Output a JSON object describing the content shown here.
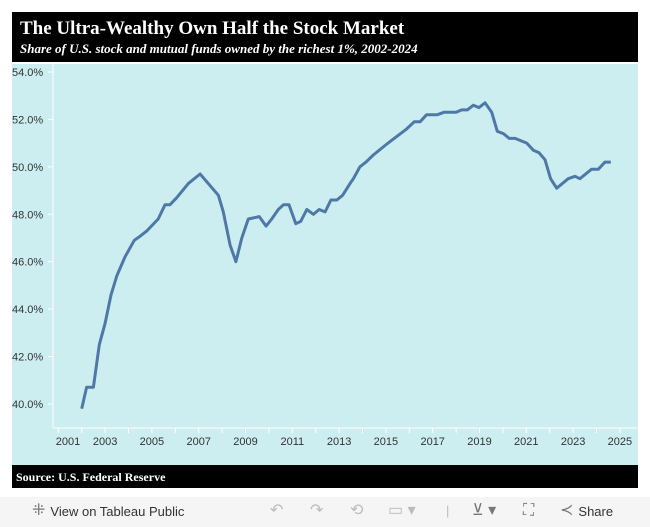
{
  "header": {
    "title": "The Ultra-Wealthy Own Half the Stock Market",
    "subtitle": "Share of U.S. stock and mutual funds owned by the richest 1%, 2002-2024"
  },
  "source": "Source: U.S. Federal Reserve",
  "toolbar": {
    "view_label": "View on Tableau Public",
    "share_label": "Share"
  },
  "colors": {
    "line": "#4e79a7",
    "plot_bg": "#cdeef0",
    "bars": "#000000"
  },
  "chart_data": {
    "type": "line",
    "title": "The Ultra-Wealthy Own Half the Stock Market",
    "subtitle": "Share of U.S. stock and mutual funds owned by the richest 1%, 2002-2024",
    "xlabel": "",
    "ylabel": "",
    "xlim": [
      2000.5,
      2025.8
    ],
    "ylim": [
      39,
      54
    ],
    "grid": false,
    "x_ticks": [
      "2001",
      "2003",
      "2005",
      "2007",
      "2009",
      "2011",
      "2013",
      "2015",
      "2017",
      "2019",
      "2021",
      "2023",
      "2025"
    ],
    "y_ticks": [
      "40.0%",
      "42.0%",
      "44.0%",
      "46.0%",
      "48.0%",
      "50.0%",
      "52.0%",
      "54.0%"
    ],
    "series": [
      {
        "x": [
          2002.0,
          2002.21,
          2002.5,
          2002.75,
          2003.0,
          2003.25,
          2003.5,
          2003.85,
          2004.25,
          2004.53,
          2004.78,
          2005.27,
          2005.56,
          2005.77,
          2006.06,
          2006.56,
          2007.06,
          2007.84,
          2008.05,
          2008.34,
          2008.59,
          2008.84,
          2009.12,
          2009.59,
          2009.88,
          2010.12,
          2010.4,
          2010.62,
          2010.86,
          2011.15,
          2011.36,
          2011.62,
          2011.9,
          2012.15,
          2012.4,
          2012.65,
          2012.9,
          2013.15,
          2013.47,
          2013.61,
          2013.89,
          2014.15,
          2014.46,
          2014.96,
          2015.22,
          2015.89,
          2016.21,
          2016.46,
          2016.74,
          2017.2,
          2017.48,
          2018.0,
          2018.24,
          2018.48,
          2018.74,
          2018.98,
          2019.24,
          2019.52,
          2019.76,
          2020.02,
          2020.27,
          2020.52,
          2021.02,
          2021.3,
          2021.54,
          2021.8,
          2022.04,
          2022.3,
          2022.79,
          2023.08,
          2023.29,
          2023.79,
          2024.08,
          2024.36,
          2024.61
        ],
        "y": [
          39.8,
          40.7,
          40.7,
          42.5,
          43.4,
          44.6,
          45.4,
          46.2,
          46.9,
          47.1,
          47.3,
          47.8,
          48.4,
          48.4,
          48.7,
          49.3,
          49.7,
          48.8,
          48.1,
          46.7,
          46.0,
          47.0,
          47.8,
          47.9,
          47.5,
          47.8,
          48.2,
          48.4,
          48.4,
          47.6,
          47.7,
          48.2,
          48.0,
          48.2,
          48.1,
          48.6,
          48.6,
          48.8,
          49.3,
          49.5,
          50.0,
          50.2,
          50.5,
          50.9,
          51.1,
          51.6,
          51.9,
          51.9,
          52.2,
          52.2,
          52.3,
          52.3,
          52.4,
          52.4,
          52.6,
          52.5,
          52.7,
          52.3,
          51.5,
          51.4,
          51.2,
          51.2,
          51.0,
          50.7,
          50.6,
          50.3,
          49.5,
          49.1,
          49.5,
          49.6,
          49.5,
          49.9,
          49.9,
          50.2,
          50.2
        ]
      }
    ]
  }
}
